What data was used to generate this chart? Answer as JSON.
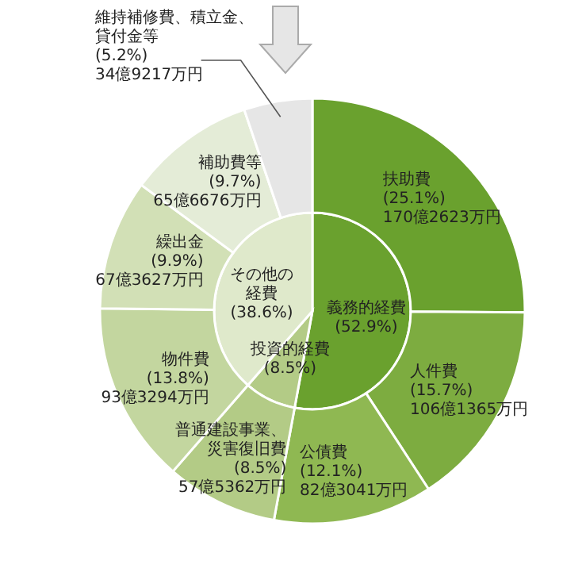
{
  "chart_data": [
    {
      "type": "pie",
      "categories": [
        "義務的経費",
        "投資的経費",
        "その他の経費"
      ],
      "values": [
        52.9,
        8.5,
        38.6
      ],
      "value_labels": [
        "(52.9%)",
        "(8.5%)",
        "(38.6%)"
      ],
      "colors": [
        "#6aa12e",
        "#b3cb86",
        "#dfe9cb"
      ]
    },
    {
      "type": "donut",
      "categories": [
        "扶助費",
        "人件費",
        "公債費",
        "普通建設事業、災害復旧費",
        "物件費",
        "繰出金",
        "補助費等",
        "維持補修費、積立金、貸付金等"
      ],
      "values": [
        25.1,
        15.7,
        12.1,
        8.5,
        13.8,
        9.9,
        9.7,
        5.2
      ],
      "value_labels": [
        "(25.1%)\n170億2623万円",
        "(15.7%)\n106億1365万円",
        "(12.1%)\n82億3041万円",
        "(8.5%)\n57億5362万円",
        "(13.8%)\n93億3294万円",
        "(9.9%)\n67億3627万円",
        "(9.7%)\n65億6676万円",
        "(5.2%)\n34億9217万円"
      ],
      "colors": [
        "#6aa12e",
        "#7dac40",
        "#8fb852",
        "#b3cb86",
        "#c3d69f",
        "#d2e0b6",
        "#e4ecd7",
        "#e6e6e6"
      ]
    }
  ]
}
